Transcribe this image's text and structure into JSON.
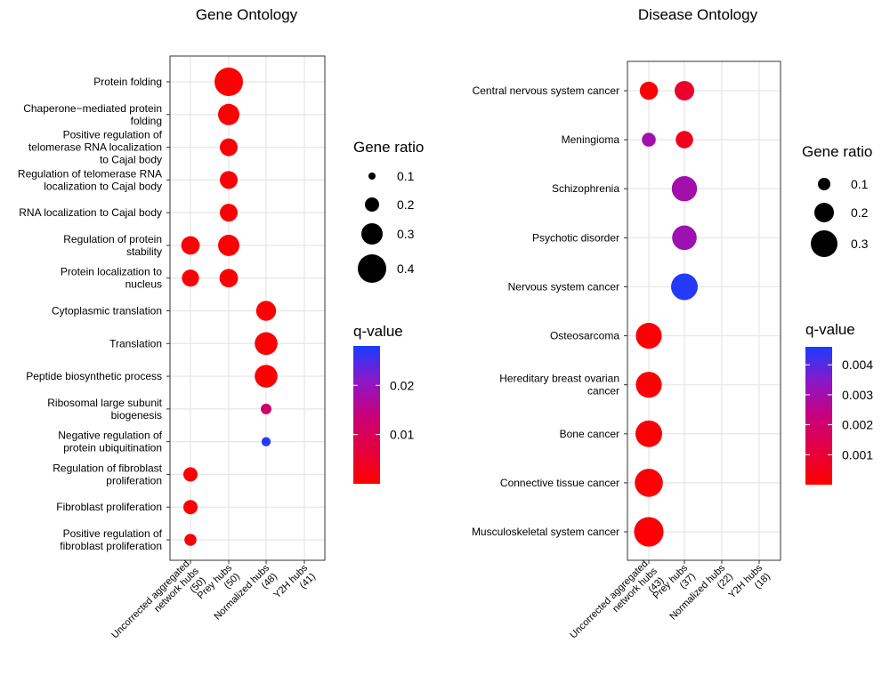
{
  "chart_data": [
    {
      "type": "scatter",
      "title": "Gene Ontology",
      "categories": [
        "Uncorrected aggregated network hubs (50)",
        "Prey hubs (50)",
        "Normalized hubs (48)",
        "Y2H hubs (41)"
      ],
      "category_lines": [
        [
          "Uncorrected aggregated",
          "network hubs",
          "(50)"
        ],
        [
          "Prey hubs",
          "(50)"
        ],
        [
          "Normalized hubs",
          "(48)"
        ],
        [
          "Y2H hubs",
          "(41)"
        ]
      ],
      "terms": [
        "Protein folding",
        "Chaperone-mediated protein folding",
        "Positive regulation of telomerase RNA localization to Cajal body",
        "Regulation of telomerase RNA localization to Cajal body",
        "RNA localization to Cajal body",
        "Regulation of protein stability",
        "Protein localization to nucleus",
        "Cytoplasmic translation",
        "Translation",
        "Peptide biosynthetic process",
        "Ribosomal large subunit biogenesis",
        "Negative regulation of protein ubiquitination",
        "Regulation of fibroblast proliferation",
        "Fibroblast proliferation",
        "Positive regulation of fibroblast proliferation"
      ],
      "term_lines": [
        [
          "Protein folding"
        ],
        [
          "Chaperone−mediated protein",
          "folding"
        ],
        [
          "Positive regulation of",
          "telomerase RNA localization",
          "to Cajal body"
        ],
        [
          "Regulation of telomerase RNA",
          "localization to Cajal body"
        ],
        [
          "RNA localization to Cajal body"
        ],
        [
          "Regulation of protein",
          "stability"
        ],
        [
          "Protein localization to",
          "nucleus"
        ],
        [
          "Cytoplasmic translation"
        ],
        [
          "Translation"
        ],
        [
          "Peptide biosynthetic process"
        ],
        [
          "Ribosomal large subunit",
          "biogenesis"
        ],
        [
          "Negative regulation of",
          "protein ubiquitination"
        ],
        [
          "Regulation of fibroblast",
          "proliferation"
        ],
        [
          "Fibroblast proliferation"
        ],
        [
          "Positive regulation of",
          "fibroblast proliferation"
        ]
      ],
      "points": [
        {
          "term": 0,
          "cat": 1,
          "ratio": 0.4,
          "q": 0.0005
        },
        {
          "term": 1,
          "cat": 1,
          "ratio": 0.3,
          "q": 0.0005
        },
        {
          "term": 2,
          "cat": 1,
          "ratio": 0.25,
          "q": 0.0005
        },
        {
          "term": 3,
          "cat": 1,
          "ratio": 0.25,
          "q": 0.0005
        },
        {
          "term": 4,
          "cat": 1,
          "ratio": 0.25,
          "q": 0.0005
        },
        {
          "term": 5,
          "cat": 0,
          "ratio": 0.26,
          "q": 0.0005
        },
        {
          "term": 5,
          "cat": 1,
          "ratio": 0.3,
          "q": 0.0005
        },
        {
          "term": 6,
          "cat": 0,
          "ratio": 0.24,
          "q": 0.0005
        },
        {
          "term": 6,
          "cat": 1,
          "ratio": 0.26,
          "q": 0.0005
        },
        {
          "term": 7,
          "cat": 2,
          "ratio": 0.28,
          "q": 0.0005
        },
        {
          "term": 8,
          "cat": 2,
          "ratio": 0.32,
          "q": 0.0005
        },
        {
          "term": 9,
          "cat": 2,
          "ratio": 0.32,
          "q": 0.0005
        },
        {
          "term": 10,
          "cat": 2,
          "ratio": 0.15,
          "q": 0.012
        },
        {
          "term": 11,
          "cat": 2,
          "ratio": 0.13,
          "q": 0.027
        },
        {
          "term": 12,
          "cat": 0,
          "ratio": 0.2,
          "q": 0.0005
        },
        {
          "term": 13,
          "cat": 0,
          "ratio": 0.2,
          "q": 0.0005
        },
        {
          "term": 14,
          "cat": 0,
          "ratio": 0.17,
          "q": 0.0005
        }
      ],
      "size_legend": {
        "title": "Gene ratio",
        "breaks": [
          0.1,
          0.2,
          0.3,
          0.4
        ],
        "labels": [
          "0.1",
          "0.2",
          "0.3",
          "0.4"
        ]
      },
      "color_legend": {
        "title": "q-value",
        "range": [
          0,
          0.028
        ],
        "breaks": [
          0.01,
          0.02
        ],
        "labels": [
          "0.01",
          "0.02"
        ]
      }
    },
    {
      "type": "scatter",
      "title": "Disease Ontology",
      "categories": [
        "Uncorrected aggregated network hubs (43)",
        "Prey hubs (37)",
        "Normalized hubs (22)",
        "Y2H hubs (18)"
      ],
      "category_lines": [
        [
          "Uncorrected aggregated",
          "network hubs",
          "(43)"
        ],
        [
          "Prey hubs",
          "(37)"
        ],
        [
          "Normalized hubs",
          "(22)"
        ],
        [
          "Y2H hubs",
          "(18)"
        ]
      ],
      "terms": [
        "Central nervous system cancer",
        "Meningioma",
        "Schizophrenia",
        "Psychotic disorder",
        "Nervous system cancer",
        "Osteosarcoma",
        "Hereditary breast ovarian cancer",
        "Bone cancer",
        "Connective tissue cancer",
        "Musculoskeletal system cancer"
      ],
      "term_lines": [
        [
          "Central nervous system cancer"
        ],
        [
          "Meningioma"
        ],
        [
          "Schizophrenia"
        ],
        [
          "Psychotic disorder"
        ],
        [
          "Nervous system cancer"
        ],
        [
          "Osteosarcoma"
        ],
        [
          "Hereditary breast ovarian",
          "cancer"
        ],
        [
          "Bone cancer"
        ],
        [
          "Connective tissue cancer"
        ],
        [
          "Musculoskeletal system cancer"
        ]
      ],
      "points": [
        {
          "term": 0,
          "cat": 0,
          "ratio": 0.18,
          "q": 0.0001
        },
        {
          "term": 0,
          "cat": 1,
          "ratio": 0.2,
          "q": 0.0008
        },
        {
          "term": 1,
          "cat": 0,
          "ratio": 0.12,
          "q": 0.003
        },
        {
          "term": 1,
          "cat": 1,
          "ratio": 0.17,
          "q": 0.0005
        },
        {
          "term": 2,
          "cat": 1,
          "ratio": 0.28,
          "q": 0.003
        },
        {
          "term": 3,
          "cat": 1,
          "ratio": 0.27,
          "q": 0.0031
        },
        {
          "term": 4,
          "cat": 1,
          "ratio": 0.3,
          "q": 0.0045
        },
        {
          "term": 5,
          "cat": 0,
          "ratio": 0.29,
          "q": 0.0001
        },
        {
          "term": 6,
          "cat": 0,
          "ratio": 0.29,
          "q": 0.0001
        },
        {
          "term": 7,
          "cat": 0,
          "ratio": 0.3,
          "q": 0.0001
        },
        {
          "term": 8,
          "cat": 0,
          "ratio": 0.32,
          "q": 0.0001
        },
        {
          "term": 9,
          "cat": 0,
          "ratio": 0.34,
          "q": 0.0001
        }
      ],
      "size_legend": {
        "title": "Gene ratio",
        "breaks": [
          0.1,
          0.2,
          0.3
        ],
        "labels": [
          "0.1",
          "0.2",
          "0.3"
        ]
      },
      "color_legend": {
        "title": "q-value",
        "range": [
          0,
          0.0046
        ],
        "breaks": [
          0.001,
          0.002,
          0.003,
          0.004
        ],
        "labels": [
          "0.001",
          "0.002",
          "0.003",
          "0.004"
        ]
      }
    }
  ],
  "colors": {
    "low": "#ff0000",
    "mid": "#a020c0",
    "high": "#1a3cff",
    "grid": "#e6e6e6",
    "panel_border": "#333333"
  }
}
